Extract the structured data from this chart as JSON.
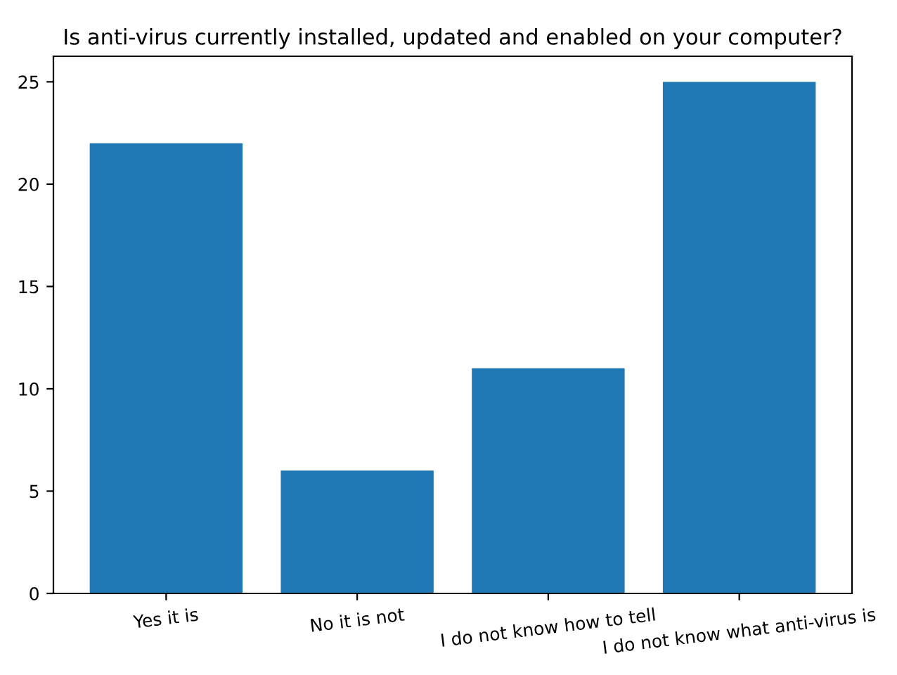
{
  "chart_data": {
    "type": "bar",
    "title": "Is anti-virus currently installed, updated and enabled on your computer?",
    "categories": [
      "Yes it is",
      "No it is not",
      "I do not know how to tell",
      "I do not know what anti-virus is"
    ],
    "values": [
      22,
      6,
      11,
      25
    ],
    "color": "#1f77b4",
    "ylim": [
      0,
      26.25
    ],
    "yticks": [
      0,
      5,
      10,
      15,
      20,
      25
    ],
    "grid": false
  }
}
